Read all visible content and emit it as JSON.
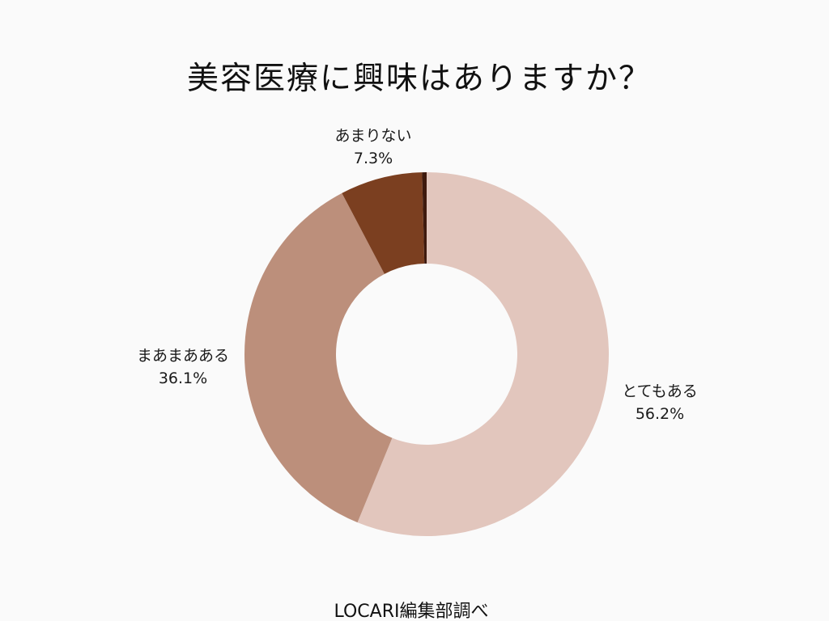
{
  "title": "美容医療に興味はありますか？",
  "source": "LOCARI編集部調べ",
  "chart_data": {
    "type": "pie",
    "style": "donut",
    "title": "美容医療に興味はありますか？",
    "series": [
      {
        "name": "とてもある",
        "value": 56.2,
        "value_label": "56.2%",
        "color": "#e2c6bd"
      },
      {
        "name": "まあまあある",
        "value": 36.1,
        "value_label": "36.1%",
        "color": "#bc8f7b"
      },
      {
        "name": "あまりない",
        "value": 7.3,
        "value_label": "7.3%",
        "color": "#7b3f20"
      },
      {
        "name": "",
        "value": 0.4,
        "value_label": "",
        "color": "#3e1a0e"
      }
    ],
    "start_angle": "12 o'clock",
    "direction": "clockwise",
    "legend": "none (labels beside slices)"
  }
}
